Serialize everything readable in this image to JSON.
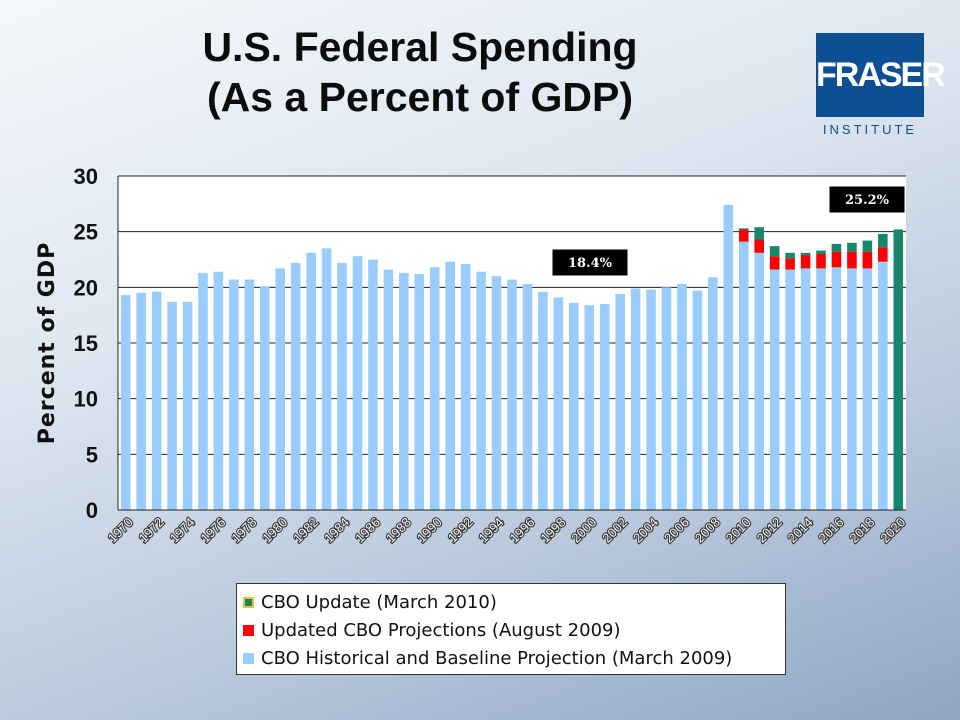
{
  "slide": {
    "title_line1": "U.S. Federal Spending",
    "title_line2": "(As a Percent of GDP)"
  },
  "logo": {
    "word": "FRASER",
    "sub": "INSTITUTE",
    "color": "#0d4f93"
  },
  "colors": {
    "historical": "#99ccff",
    "updated": "#ff0000",
    "update": "#16876d"
  },
  "chart_data": {
    "type": "bar",
    "stacked": true,
    "ylabel": "Percent of GDP",
    "ylim": [
      0,
      30
    ],
    "yticks": [
      0,
      5,
      10,
      15,
      20,
      25,
      30
    ],
    "grid": true,
    "legend_position": "bottom",
    "x_tick_labels": [
      "1970",
      "1972",
      "1974",
      "1976",
      "1978",
      "1980",
      "1982",
      "1984",
      "1986",
      "1988",
      "1990",
      "1992",
      "1994",
      "1996",
      "1998",
      "2000",
      "2002",
      "2004",
      "2006",
      "2008",
      "2010",
      "2012",
      "2014",
      "2016",
      "2018",
      "2020"
    ],
    "categories": [
      "1970",
      "1971",
      "1972",
      "1973",
      "1974",
      "1975",
      "1976",
      "1977",
      "1978",
      "1979",
      "1980",
      "1981",
      "1982",
      "1983",
      "1984",
      "1985",
      "1986",
      "1987",
      "1988",
      "1989",
      "1990",
      "1991",
      "1992",
      "1993",
      "1994",
      "1995",
      "1996",
      "1997",
      "1998",
      "1999",
      "2000",
      "2001",
      "2002",
      "2003",
      "2004",
      "2005",
      "2006",
      "2007",
      "2008",
      "2009",
      "2010",
      "2011",
      "2012",
      "2013",
      "2014",
      "2015",
      "2016",
      "2017",
      "2018",
      "2019",
      "2020"
    ],
    "series": [
      {
        "name": "CBO Historical and Baseline Projection (March 2009)",
        "color": "#99ccff",
        "values": [
          19.3,
          19.5,
          19.6,
          18.7,
          18.7,
          21.3,
          21.4,
          20.7,
          20.7,
          20.1,
          21.7,
          22.2,
          23.1,
          23.5,
          22.2,
          22.8,
          22.5,
          21.6,
          21.3,
          21.2,
          21.8,
          22.3,
          22.1,
          21.4,
          21.0,
          20.7,
          20.3,
          19.6,
          19.1,
          18.6,
          18.4,
          18.5,
          19.4,
          19.9,
          19.8,
          20.0,
          20.3,
          19.7,
          20.9,
          27.4,
          24.1,
          23.1,
          21.6,
          21.6,
          21.7,
          21.7,
          21.8,
          21.7,
          21.7,
          22.3,
          null
        ]
      },
      {
        "name": "Updated CBO Projections (August 2009)",
        "color": "#ff0000",
        "values": [
          null,
          null,
          null,
          null,
          null,
          null,
          null,
          null,
          null,
          null,
          null,
          null,
          null,
          null,
          null,
          null,
          null,
          null,
          null,
          null,
          null,
          null,
          null,
          null,
          null,
          null,
          null,
          null,
          null,
          null,
          null,
          null,
          null,
          null,
          null,
          null,
          null,
          null,
          null,
          null,
          1.1,
          1.2,
          1.2,
          1.0,
          1.2,
          1.3,
          1.4,
          1.5,
          1.5,
          1.3,
          null
        ]
      },
      {
        "name": "CBO Update (March 2010)",
        "color": "#16876d",
        "values": [
          null,
          null,
          null,
          null,
          null,
          null,
          null,
          null,
          null,
          null,
          null,
          null,
          null,
          null,
          null,
          null,
          null,
          null,
          null,
          null,
          null,
          null,
          null,
          null,
          null,
          null,
          null,
          null,
          null,
          null,
          null,
          null,
          null,
          null,
          null,
          null,
          null,
          null,
          null,
          null,
          0.1,
          1.1,
          0.9,
          0.5,
          0.2,
          0.3,
          0.7,
          0.8,
          1.0,
          1.2,
          25.2
        ]
      }
    ],
    "annotations": [
      {
        "text": "18.4%",
        "category": "2000"
      },
      {
        "text": "25.2%",
        "category": "2020"
      }
    ]
  },
  "legend": {
    "items": [
      {
        "label": "CBO Update (March 2010)",
        "color": "#16876d",
        "border": "#e6c13a"
      },
      {
        "label": "Updated CBO Projections (August 2009)",
        "color": "#ff0000",
        "border": "#ff0000"
      },
      {
        "label": "CBO Historical and Baseline Projection (March 2009)",
        "color": "#99ccff",
        "border": "#99ccff"
      }
    ]
  }
}
